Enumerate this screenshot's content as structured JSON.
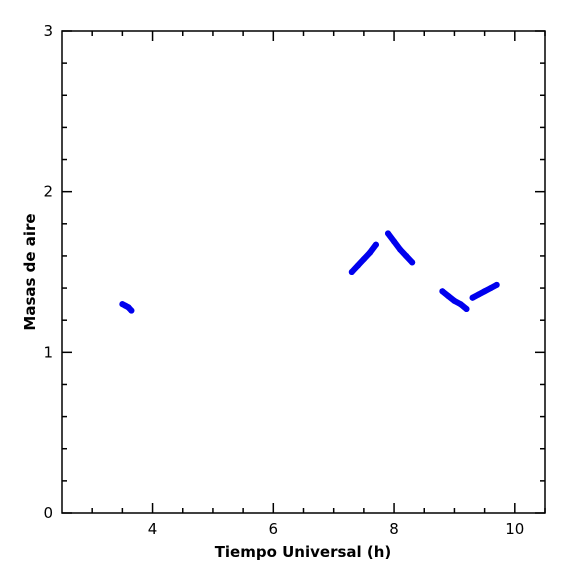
{
  "chart_data": {
    "type": "scatter",
    "xlabel": "Tiempo Universal (h)",
    "ylabel": "Masas de aire",
    "xlim": [
      2.5,
      10.5
    ],
    "ylim": [
      0,
      3
    ],
    "x_ticks_major": [
      4,
      6,
      8,
      10
    ],
    "x_ticks_minor": [
      3,
      3.5,
      4.5,
      5,
      5.5,
      6.5,
      7,
      7.5,
      8.5,
      9,
      9.5,
      10.5
    ],
    "y_ticks_major": [
      0,
      1,
      2,
      3
    ],
    "y_ticks_minor": [
      0.2,
      0.4,
      0.6,
      0.8,
      1.2,
      1.4,
      1.6,
      1.8,
      2.2,
      2.4,
      2.6,
      2.8
    ],
    "x_tick_labels": [
      "4",
      "6",
      "8",
      "10"
    ],
    "y_tick_labels": [
      "0",
      "1",
      "2",
      "3"
    ],
    "grid": false,
    "color": "#0000ee",
    "series": [
      {
        "x": [
          3.5,
          3.55,
          3.6,
          3.65
        ],
        "y": [
          1.3,
          1.29,
          1.28,
          1.26
        ]
      },
      {
        "x": [
          7.3,
          7.4,
          7.5,
          7.6,
          7.7
        ],
        "y": [
          1.5,
          1.54,
          1.58,
          1.62,
          1.67
        ]
      },
      {
        "x": [
          7.9,
          8.0,
          8.1,
          8.2,
          8.3
        ],
        "y": [
          1.74,
          1.69,
          1.64,
          1.6,
          1.56
        ]
      },
      {
        "x": [
          8.8,
          8.9,
          9.0,
          9.1,
          9.2
        ],
        "y": [
          1.38,
          1.35,
          1.32,
          1.3,
          1.27
        ]
      },
      {
        "x": [
          9.3,
          9.4,
          9.5,
          9.6,
          9.7
        ],
        "y": [
          1.34,
          1.36,
          1.38,
          1.4,
          1.42
        ]
      }
    ]
  }
}
